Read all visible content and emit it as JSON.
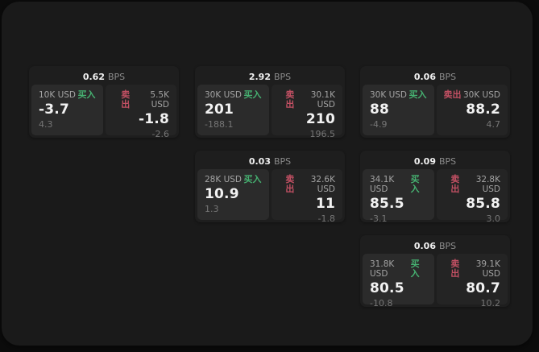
{
  "labels": {
    "buy": "买入",
    "sell": "卖出",
    "bps_unit": "BPS"
  },
  "colors": {
    "buy_green": "#46b171",
    "sell_red": "#c25063",
    "value_white": "#f2f2f2"
  },
  "cards": [
    {
      "row": 1,
      "col": 1,
      "bps": "0.62",
      "buy": {
        "amount": "10K USD",
        "value": "-3.7",
        "delta": "4.3"
      },
      "sell": {
        "amount": "5.5K USD",
        "value": "-1.8",
        "delta": "-2.6"
      }
    },
    {
      "row": 1,
      "col": 2,
      "bps": "2.92",
      "buy": {
        "amount": "30K USD",
        "value": "201",
        "delta": "-188.1"
      },
      "sell": {
        "amount": "30.1K USD",
        "value": "210",
        "delta": "196.5"
      }
    },
    {
      "row": 1,
      "col": 3,
      "bps": "0.06",
      "buy": {
        "amount": "30K USD",
        "value": "88",
        "delta": "-4.9"
      },
      "sell": {
        "amount": "30K USD",
        "value": "88.2",
        "delta": "4.7"
      }
    },
    {
      "row": 2,
      "col": 2,
      "bps": "0.03",
      "buy": {
        "amount": "28K USD",
        "value": "10.9",
        "delta": "1.3"
      },
      "sell": {
        "amount": "32.6K USD",
        "value": "11",
        "delta": "-1.8"
      }
    },
    {
      "row": 2,
      "col": 3,
      "bps": "0.09",
      "buy": {
        "amount": "34.1K USD",
        "value": "85.5",
        "delta": "-3.1"
      },
      "sell": {
        "amount": "32.8K USD",
        "value": "85.8",
        "delta": "3.0"
      }
    },
    {
      "row": 3,
      "col": 3,
      "bps": "0.06",
      "buy": {
        "amount": "31.8K USD",
        "value": "80.5",
        "delta": "-10.8"
      },
      "sell": {
        "amount": "39.1K USD",
        "value": "80.7",
        "delta": "10.2"
      }
    }
  ]
}
